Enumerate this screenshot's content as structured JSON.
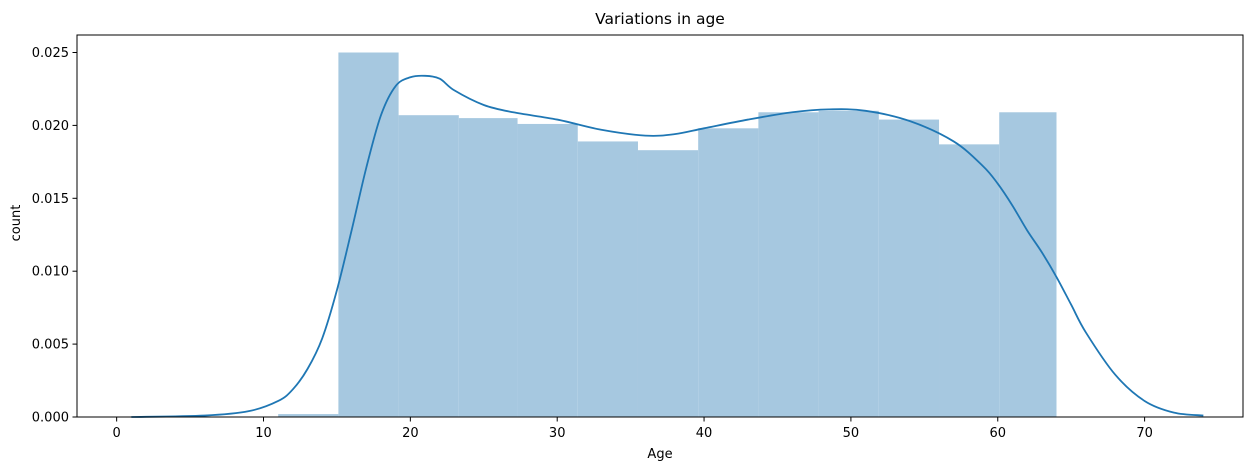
{
  "chart_data": {
    "type": "bar",
    "title": "Variations in age",
    "xlabel": "Age",
    "ylabel": "count",
    "xlim": [
      -2.7,
      76.7
    ],
    "ylim": [
      0,
      0.0262
    ],
    "xticks": [
      0,
      10,
      20,
      30,
      40,
      50,
      60,
      70
    ],
    "yticks": [
      0.0,
      0.005,
      0.01,
      0.015,
      0.02,
      0.025
    ],
    "ytick_labels": [
      "0.000",
      "0.005",
      "0.010",
      "0.015",
      "0.020",
      "0.025"
    ],
    "grid": false,
    "histogram": {
      "bin_edges": [
        11,
        15.1,
        19.2,
        23.3,
        27.3,
        31.4,
        35.5,
        39.6,
        43.7,
        47.8,
        51.9,
        56.0,
        60.1,
        64.0
      ],
      "values": [
        0.0002,
        0.025,
        0.0207,
        0.0205,
        0.0201,
        0.0189,
        0.0183,
        0.0198,
        0.0209,
        0.021,
        0.0204,
        0.0187,
        0.0209
      ],
      "color": "#a6c8e0"
    },
    "kde": {
      "x": [
        1,
        6,
        9,
        11,
        12,
        13,
        14,
        15,
        16,
        17,
        18,
        19,
        20,
        21,
        22,
        23,
        25,
        27,
        30,
        33,
        36,
        38,
        40,
        43,
        46,
        48.5,
        51,
        54,
        57,
        59,
        60,
        61,
        62,
        63,
        64,
        65,
        66,
        68,
        70,
        72,
        74
      ],
      "y": [
        0.0,
        0.0001,
        0.0004,
        0.0011,
        0.0019,
        0.0033,
        0.0054,
        0.0087,
        0.0128,
        0.0171,
        0.0207,
        0.0227,
        0.0233,
        0.0234,
        0.0232,
        0.0224,
        0.0214,
        0.0209,
        0.0204,
        0.0197,
        0.0193,
        0.0194,
        0.0198,
        0.0204,
        0.0209,
        0.0211,
        0.021,
        0.0203,
        0.0189,
        0.0172,
        0.016,
        0.0145,
        0.0128,
        0.0113,
        0.0096,
        0.0077,
        0.0058,
        0.0029,
        0.0011,
        0.0003,
        0.0001
      ],
      "color": "#1f77b4"
    }
  }
}
